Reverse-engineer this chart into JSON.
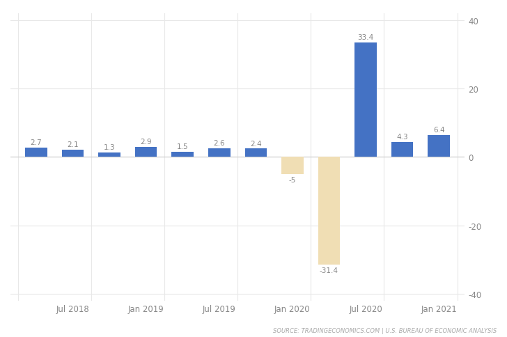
{
  "values": [
    2.7,
    2.1,
    1.3,
    2.9,
    1.5,
    2.6,
    2.4,
    -5.0,
    -31.4,
    33.4,
    4.3,
    6.4
  ],
  "bar_colors": [
    "#4472c4",
    "#4472c4",
    "#4472c4",
    "#4472c4",
    "#4472c4",
    "#4472c4",
    "#4472c4",
    "#f0deb4",
    "#f0deb4",
    "#4472c4",
    "#4472c4",
    "#4472c4"
  ],
  "x_labels": [
    "Jul 2018",
    "Jan 2019",
    "Jul 2019",
    "Jan 2020",
    "Jul 2020",
    "Jan 2021"
  ],
  "ylim": [
    -42,
    42
  ],
  "yticks": [
    -40,
    -20,
    0,
    20,
    40
  ],
  "source_text": "SOURCE: TRADINGECONOMICS.COM | U.S. BUREAU OF ECONOMIC ANALYSIS",
  "value_label_fontsize": 7.5,
  "tick_fontsize": 8.5,
  "source_fontsize": 6,
  "grid_color": "#e8e8e8",
  "background_color": "#ffffff",
  "bar_width": 0.6
}
